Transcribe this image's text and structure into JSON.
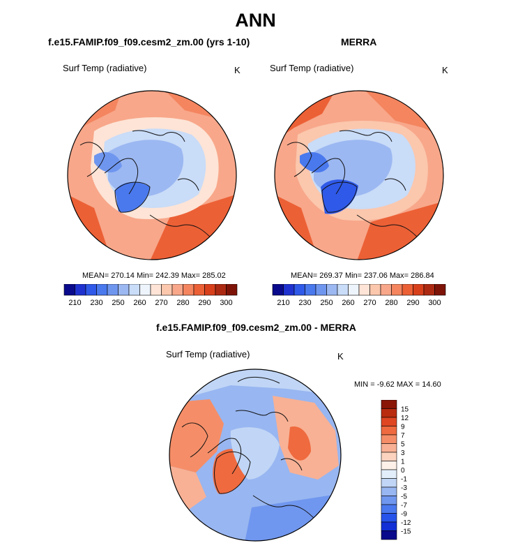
{
  "page": {
    "title": "ANN",
    "panels": {
      "model": {
        "title": "f.e15.FAMIP.f09_f09.cesm2_zm.00 (yrs 1-10)",
        "variable": "Surf Temp (radiative)",
        "units": "K",
        "stats": "MEAN= 270.14  Min= 242.39  Max= 285.02"
      },
      "obs": {
        "title": "MERRA",
        "variable": "Surf Temp (radiative)",
        "units": "K",
        "stats": "MEAN= 269.37  Min= 237.06  Max= 286.84"
      },
      "diff": {
        "title": "f.e15.FAMIP.f09_f09.cesm2_zm.00 - MERRA",
        "variable": "Surf Temp (radiative)",
        "units": "K",
        "stats": "MIN =  -9.62 MAX =  14.60"
      }
    }
  },
  "colors": {
    "abs_palette": [
      "#0a0a8c",
      "#1f32d0",
      "#2f59e8",
      "#4a79ee",
      "#6f96ef",
      "#9cb8f2",
      "#c9dcf8",
      "#eef4fc",
      "#fde4d6",
      "#fbc7ad",
      "#f8a78a",
      "#f4855f",
      "#ec6036",
      "#d8401c",
      "#ad2a12",
      "#7e1408"
    ],
    "diff_palette": [
      "#0a0a8c",
      "#1230d6",
      "#2653ea",
      "#4a78ee",
      "#7097ef",
      "#98b6f1",
      "#c1d6f6",
      "#e3eefb",
      "#fdf0e8",
      "#fbd3bf",
      "#f8b195",
      "#f58e68",
      "#ef6a3f",
      "#df4722",
      "#b92c10",
      "#891606"
    ]
  },
  "chart_data": [
    {
      "type": "heatmap",
      "projection": "north-polar-stereographic",
      "title": "f.e15.FAMIP.f09_f09.cesm2_zm.00 (yrs 1-10)",
      "variable": "Surf Temp (radiative)",
      "units": "K",
      "summary": {
        "mean": 270.14,
        "min": 242.39,
        "max": 285.02
      },
      "colorbar": {
        "orientation": "horizontal",
        "levels": [
          210,
          230,
          250,
          260,
          270,
          280,
          290,
          300
        ],
        "tick_labels": [
          "210",
          "230",
          "250",
          "260",
          "270",
          "280",
          "290",
          "300"
        ]
      }
    },
    {
      "type": "heatmap",
      "projection": "north-polar-stereographic",
      "title": "MERRA",
      "variable": "Surf Temp (radiative)",
      "units": "K",
      "summary": {
        "mean": 269.37,
        "min": 237.06,
        "max": 286.84
      },
      "colorbar": {
        "orientation": "horizontal",
        "levels": [
          210,
          230,
          250,
          260,
          270,
          280,
          290,
          300
        ],
        "tick_labels": [
          "210",
          "230",
          "250",
          "260",
          "270",
          "280",
          "290",
          "300"
        ]
      }
    },
    {
      "type": "heatmap",
      "projection": "north-polar-stereographic",
      "title": "f.e15.FAMIP.f09_f09.cesm2_zm.00 - MERRA",
      "variable": "Surf Temp (radiative)",
      "units": "K",
      "summary": {
        "min": -9.62,
        "max": 14.6
      },
      "colorbar": {
        "orientation": "vertical",
        "levels": [
          15,
          12,
          9,
          7,
          5,
          3,
          1,
          0,
          -1,
          -3,
          -5,
          -7,
          -9,
          -12,
          -15
        ],
        "tick_labels": [
          "15",
          "12",
          "9",
          "7",
          "5",
          "3",
          "1",
          "0",
          "-1",
          "-3",
          "-5",
          "-7",
          "-9",
          "-12",
          "-15"
        ]
      }
    }
  ]
}
